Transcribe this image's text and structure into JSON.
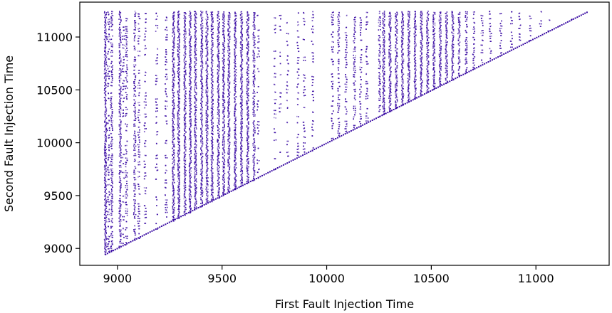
{
  "chart_data": {
    "type": "scatter",
    "title": "",
    "xlabel": "First Fault Injection Time",
    "ylabel": "Second Fault Injection Time",
    "xlim": [
      8820,
      11350
    ],
    "ylim": [
      8840,
      11330
    ],
    "xticks": [
      9000,
      9500,
      10000,
      10500,
      11000
    ],
    "yticks": [
      9000,
      9500,
      10000,
      10500,
      11000
    ],
    "grid": false,
    "legend": "none",
    "marker_color": "#3a0ca3",
    "note_y_ge_x": true,
    "x_columns": [
      {
        "x": 8940,
        "density": 1.0
      },
      {
        "x": 8955,
        "density": 0.6
      },
      {
        "x": 8970,
        "density": 0.8
      },
      {
        "x": 9010,
        "density": 0.9
      },
      {
        "x": 9025,
        "density": 0.5
      },
      {
        "x": 9040,
        "density": 0.7
      },
      {
        "x": 9080,
        "density": 0.8
      },
      {
        "x": 9100,
        "density": 0.6
      },
      {
        "x": 9130,
        "density": 0.5
      },
      {
        "x": 9185,
        "density": 0.5
      },
      {
        "x": 9230,
        "density": 0.6
      },
      {
        "x": 9265,
        "density": 1.0
      },
      {
        "x": 9290,
        "density": 1.0
      },
      {
        "x": 9320,
        "density": 1.0
      },
      {
        "x": 9345,
        "density": 1.0
      },
      {
        "x": 9370,
        "density": 1.0
      },
      {
        "x": 9400,
        "density": 1.0
      },
      {
        "x": 9425,
        "density": 1.0
      },
      {
        "x": 9450,
        "density": 1.0
      },
      {
        "x": 9480,
        "density": 1.0
      },
      {
        "x": 9505,
        "density": 1.0
      },
      {
        "x": 9530,
        "density": 1.0
      },
      {
        "x": 9560,
        "density": 1.0
      },
      {
        "x": 9590,
        "density": 1.0
      },
      {
        "x": 9620,
        "density": 1.0
      },
      {
        "x": 9650,
        "density": 0.9
      },
      {
        "x": 9670,
        "density": 0.5
      },
      {
        "x": 9750,
        "density": 0.4
      },
      {
        "x": 9775,
        "density": 0.4
      },
      {
        "x": 9810,
        "density": 0.4
      },
      {
        "x": 9860,
        "density": 0.5
      },
      {
        "x": 9890,
        "density": 0.5
      },
      {
        "x": 9930,
        "density": 0.5
      },
      {
        "x": 10025,
        "density": 0.6
      },
      {
        "x": 10055,
        "density": 0.7
      },
      {
        "x": 10090,
        "density": 0.6
      },
      {
        "x": 10130,
        "density": 0.7
      },
      {
        "x": 10160,
        "density": 0.6
      },
      {
        "x": 10190,
        "density": 0.6
      },
      {
        "x": 10250,
        "density": 0.8
      },
      {
        "x": 10270,
        "density": 1.0
      },
      {
        "x": 10300,
        "density": 1.0
      },
      {
        "x": 10330,
        "density": 1.0
      },
      {
        "x": 10360,
        "density": 1.0
      },
      {
        "x": 10390,
        "density": 1.0
      },
      {
        "x": 10420,
        "density": 1.0
      },
      {
        "x": 10450,
        "density": 1.0
      },
      {
        "x": 10480,
        "density": 1.0
      },
      {
        "x": 10510,
        "density": 1.0
      },
      {
        "x": 10540,
        "density": 1.0
      },
      {
        "x": 10570,
        "density": 1.0
      },
      {
        "x": 10600,
        "density": 1.0
      },
      {
        "x": 10630,
        "density": 0.9
      },
      {
        "x": 10665,
        "density": 0.8
      },
      {
        "x": 10700,
        "density": 0.7
      },
      {
        "x": 10740,
        "density": 0.6
      },
      {
        "x": 10780,
        "density": 0.6
      },
      {
        "x": 10830,
        "density": 0.6
      },
      {
        "x": 10880,
        "density": 0.5
      },
      {
        "x": 10920,
        "density": 0.5
      },
      {
        "x": 10970,
        "density": 0.6
      },
      {
        "x": 11020,
        "density": 0.5
      },
      {
        "x": 11060,
        "density": 0.4
      },
      {
        "x": 11110,
        "density": 0.4
      },
      {
        "x": 11170,
        "density": 0.3
      },
      {
        "x": 11210,
        "density": 0.3
      }
    ],
    "y_max": 11250,
    "diagonal": {
      "from": [
        8940,
        8950
      ],
      "to": [
        11250,
        11250
      ]
    }
  }
}
